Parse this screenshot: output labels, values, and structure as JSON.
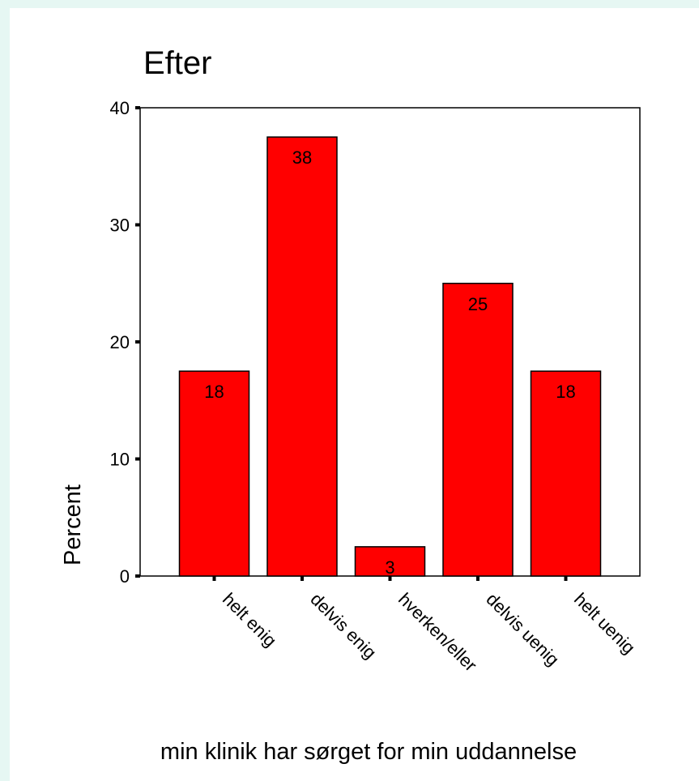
{
  "chart_data": {
    "type": "bar",
    "title": "Efter",
    "xlabel": "min klinik har sørget for min uddannelse",
    "ylabel": "Percent",
    "categories": [
      "helt enig",
      "delvis enig",
      "hverken/eller",
      "delvis uenig",
      "helt uenig"
    ],
    "values": [
      17.5,
      37.5,
      2.5,
      25,
      17.5
    ],
    "data_labels": [
      "18",
      "38",
      "3",
      "25",
      "18"
    ],
    "ylim": [
      0,
      40
    ],
    "yticks": [
      0,
      10,
      20,
      30,
      40
    ],
    "ytick_labels": [
      "0",
      "10",
      "20",
      "30",
      "40"
    ],
    "grid": false,
    "legend": "none",
    "colors": {
      "bar_fill": "#ff0000",
      "bar_stroke": "#000000",
      "frame": "#000000",
      "page_background": "#e6f7f3",
      "panel_background": "#ffffff"
    }
  }
}
